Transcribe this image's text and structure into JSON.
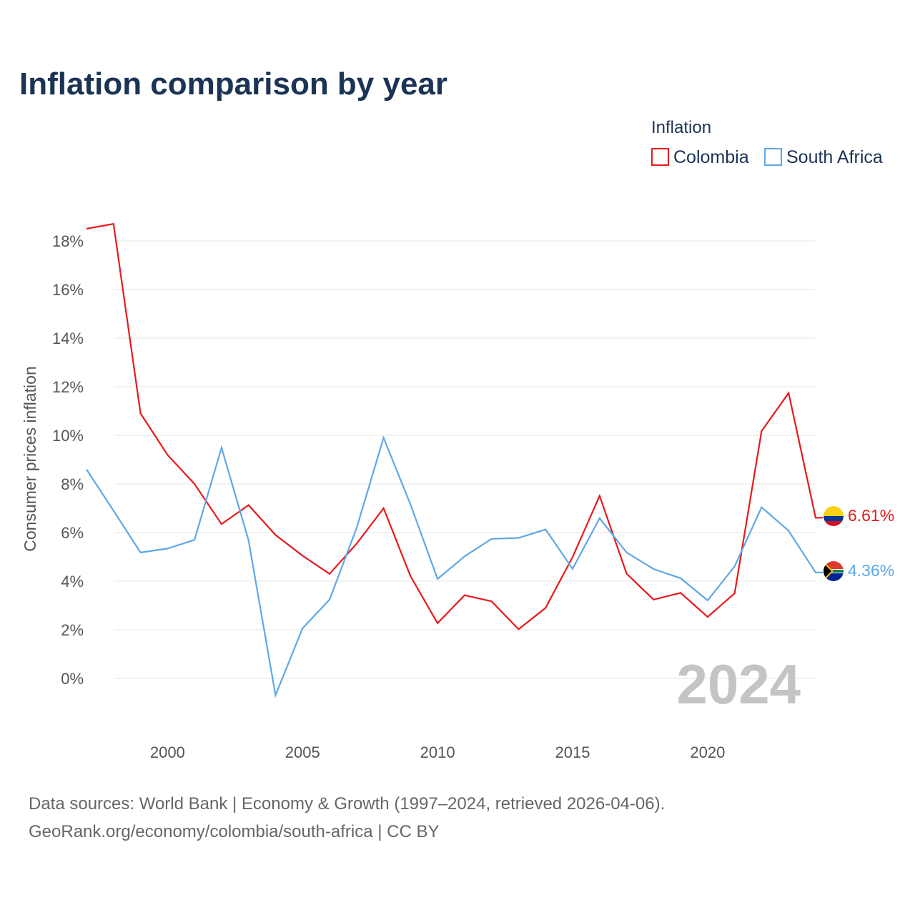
{
  "chart_data": {
    "type": "line",
    "title": "Inflation comparison by year",
    "legend_title": "Inflation",
    "ylabel": "Consumer prices inflation",
    "xlabel": "",
    "x": [
      1997,
      1998,
      1999,
      2000,
      2001,
      2002,
      2003,
      2004,
      2005,
      2006,
      2007,
      2008,
      2009,
      2010,
      2011,
      2012,
      2013,
      2014,
      2015,
      2016,
      2017,
      2018,
      2019,
      2020,
      2021,
      2022,
      2023,
      2024
    ],
    "xlim": [
      1997,
      2024
    ],
    "ylim": [
      -2,
      19
    ],
    "xticks": [
      2000,
      2005,
      2010,
      2015,
      2020
    ],
    "xtick_labels": [
      "2000",
      "2005",
      "2010",
      "2015",
      "2020"
    ],
    "yticks": [
      0,
      2,
      4,
      6,
      8,
      10,
      12,
      14,
      16,
      18
    ],
    "ytick_labels": [
      "0%",
      "2%",
      "4%",
      "6%",
      "8%",
      "10%",
      "12%",
      "14%",
      "16%",
      "18%"
    ],
    "grid": true,
    "legend_position": "top-right",
    "series": [
      {
        "name": "Colombia",
        "color": "#e8191b",
        "values": [
          18.5,
          18.7,
          10.9,
          9.2,
          8.0,
          6.35,
          7.13,
          5.9,
          5.05,
          4.3,
          5.54,
          7.0,
          4.2,
          2.27,
          3.42,
          3.17,
          2.02,
          2.9,
          4.99,
          7.51,
          4.31,
          3.24,
          3.52,
          2.53,
          3.5,
          10.18,
          11.74,
          6.61
        ],
        "end_label": "6.61%",
        "flag_icon": "colombia-flag-icon"
      },
      {
        "name": "South Africa",
        "color": "#5ea8e6",
        "values": [
          8.6,
          6.9,
          5.18,
          5.34,
          5.7,
          9.49,
          5.68,
          -0.69,
          2.06,
          3.24,
          6.18,
          9.9,
          7.15,
          4.09,
          5.02,
          5.74,
          5.78,
          6.13,
          4.51,
          6.59,
          5.18,
          4.5,
          4.12,
          3.21,
          4.61,
          7.04,
          6.07,
          4.36
        ],
        "end_label": "4.36%",
        "flag_icon": "south-africa-flag-icon"
      }
    ],
    "annotations": [
      {
        "text": "2024",
        "role": "current-year-watermark"
      }
    ]
  },
  "footer": {
    "line1": "Data sources: World Bank | Economy & Growth (1997–2024, retrieved 2026-04-06).",
    "line2": "GeoRank.org/economy/colombia/south-africa | CC BY"
  },
  "colors": {
    "title": "#1b3354",
    "axis_text": "#555555",
    "grid": "#e6e6e6",
    "watermark": "#c4c4c4"
  }
}
